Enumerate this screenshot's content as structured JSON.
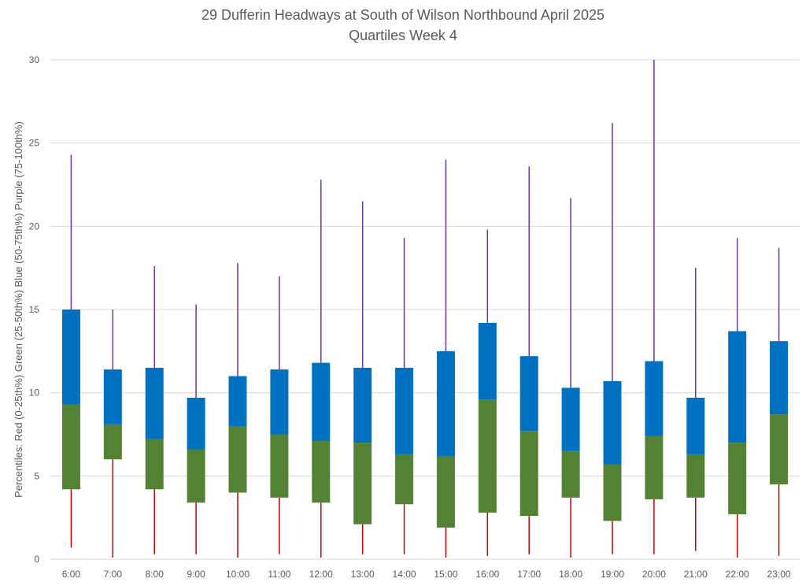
{
  "chart_data": {
    "type": "box",
    "title": "29 Dufferin Headways at South of Wilson Northbound April 2025",
    "subtitle": "Quartiles Week 4",
    "ylabel": "Percentiles:  Red (0-25th%)  Green (25-50th%)  Blue (50-75th%)  Purple (75-100th%)",
    "xlabel": "",
    "ylim": [
      0,
      30
    ],
    "yticks": [
      0,
      5,
      10,
      15,
      20,
      25,
      30
    ],
    "grid": true,
    "legend": "none",
    "colors": {
      "min_q1": "#c00000",
      "q1_median": "#548235",
      "median_q3": "#0070c0",
      "q3_max": "#7030a0",
      "grid": "#d9d9d9"
    },
    "categories": [
      "6:00",
      "7:00",
      "8:00",
      "9:00",
      "10:00",
      "11:00",
      "12:00",
      "13:00",
      "14:00",
      "15:00",
      "16:00",
      "17:00",
      "18:00",
      "19:00",
      "20:00",
      "21:00",
      "22:00",
      "23:00"
    ],
    "min": [
      0.7,
      0.1,
      0.3,
      0.3,
      0.1,
      0.3,
      0.1,
      0.3,
      0.3,
      0.1,
      0.2,
      0.3,
      0.1,
      0.3,
      0.3,
      0.5,
      0.1,
      0.2
    ],
    "q1": [
      4.2,
      6.0,
      4.2,
      3.4,
      4.0,
      3.7,
      3.4,
      2.1,
      3.3,
      1.9,
      2.8,
      2.6,
      3.7,
      2.3,
      3.6,
      3.7,
      2.7,
      4.5
    ],
    "median": [
      9.3,
      8.1,
      7.2,
      6.6,
      8.0,
      7.5,
      7.1,
      7.0,
      6.3,
      6.2,
      9.6,
      7.7,
      6.5,
      5.7,
      7.4,
      6.3,
      7.0,
      8.7
    ],
    "q3": [
      15.0,
      11.4,
      11.5,
      9.7,
      11.0,
      11.4,
      11.8,
      11.5,
      11.5,
      12.5,
      14.2,
      12.2,
      10.3,
      10.7,
      11.9,
      9.7,
      13.7,
      13.1
    ],
    "max": [
      24.3,
      15.0,
      17.6,
      15.3,
      17.8,
      17.0,
      22.8,
      21.5,
      19.3,
      24.0,
      19.8,
      23.6,
      21.7,
      26.2,
      30.0,
      17.5,
      19.3,
      18.7
    ]
  }
}
